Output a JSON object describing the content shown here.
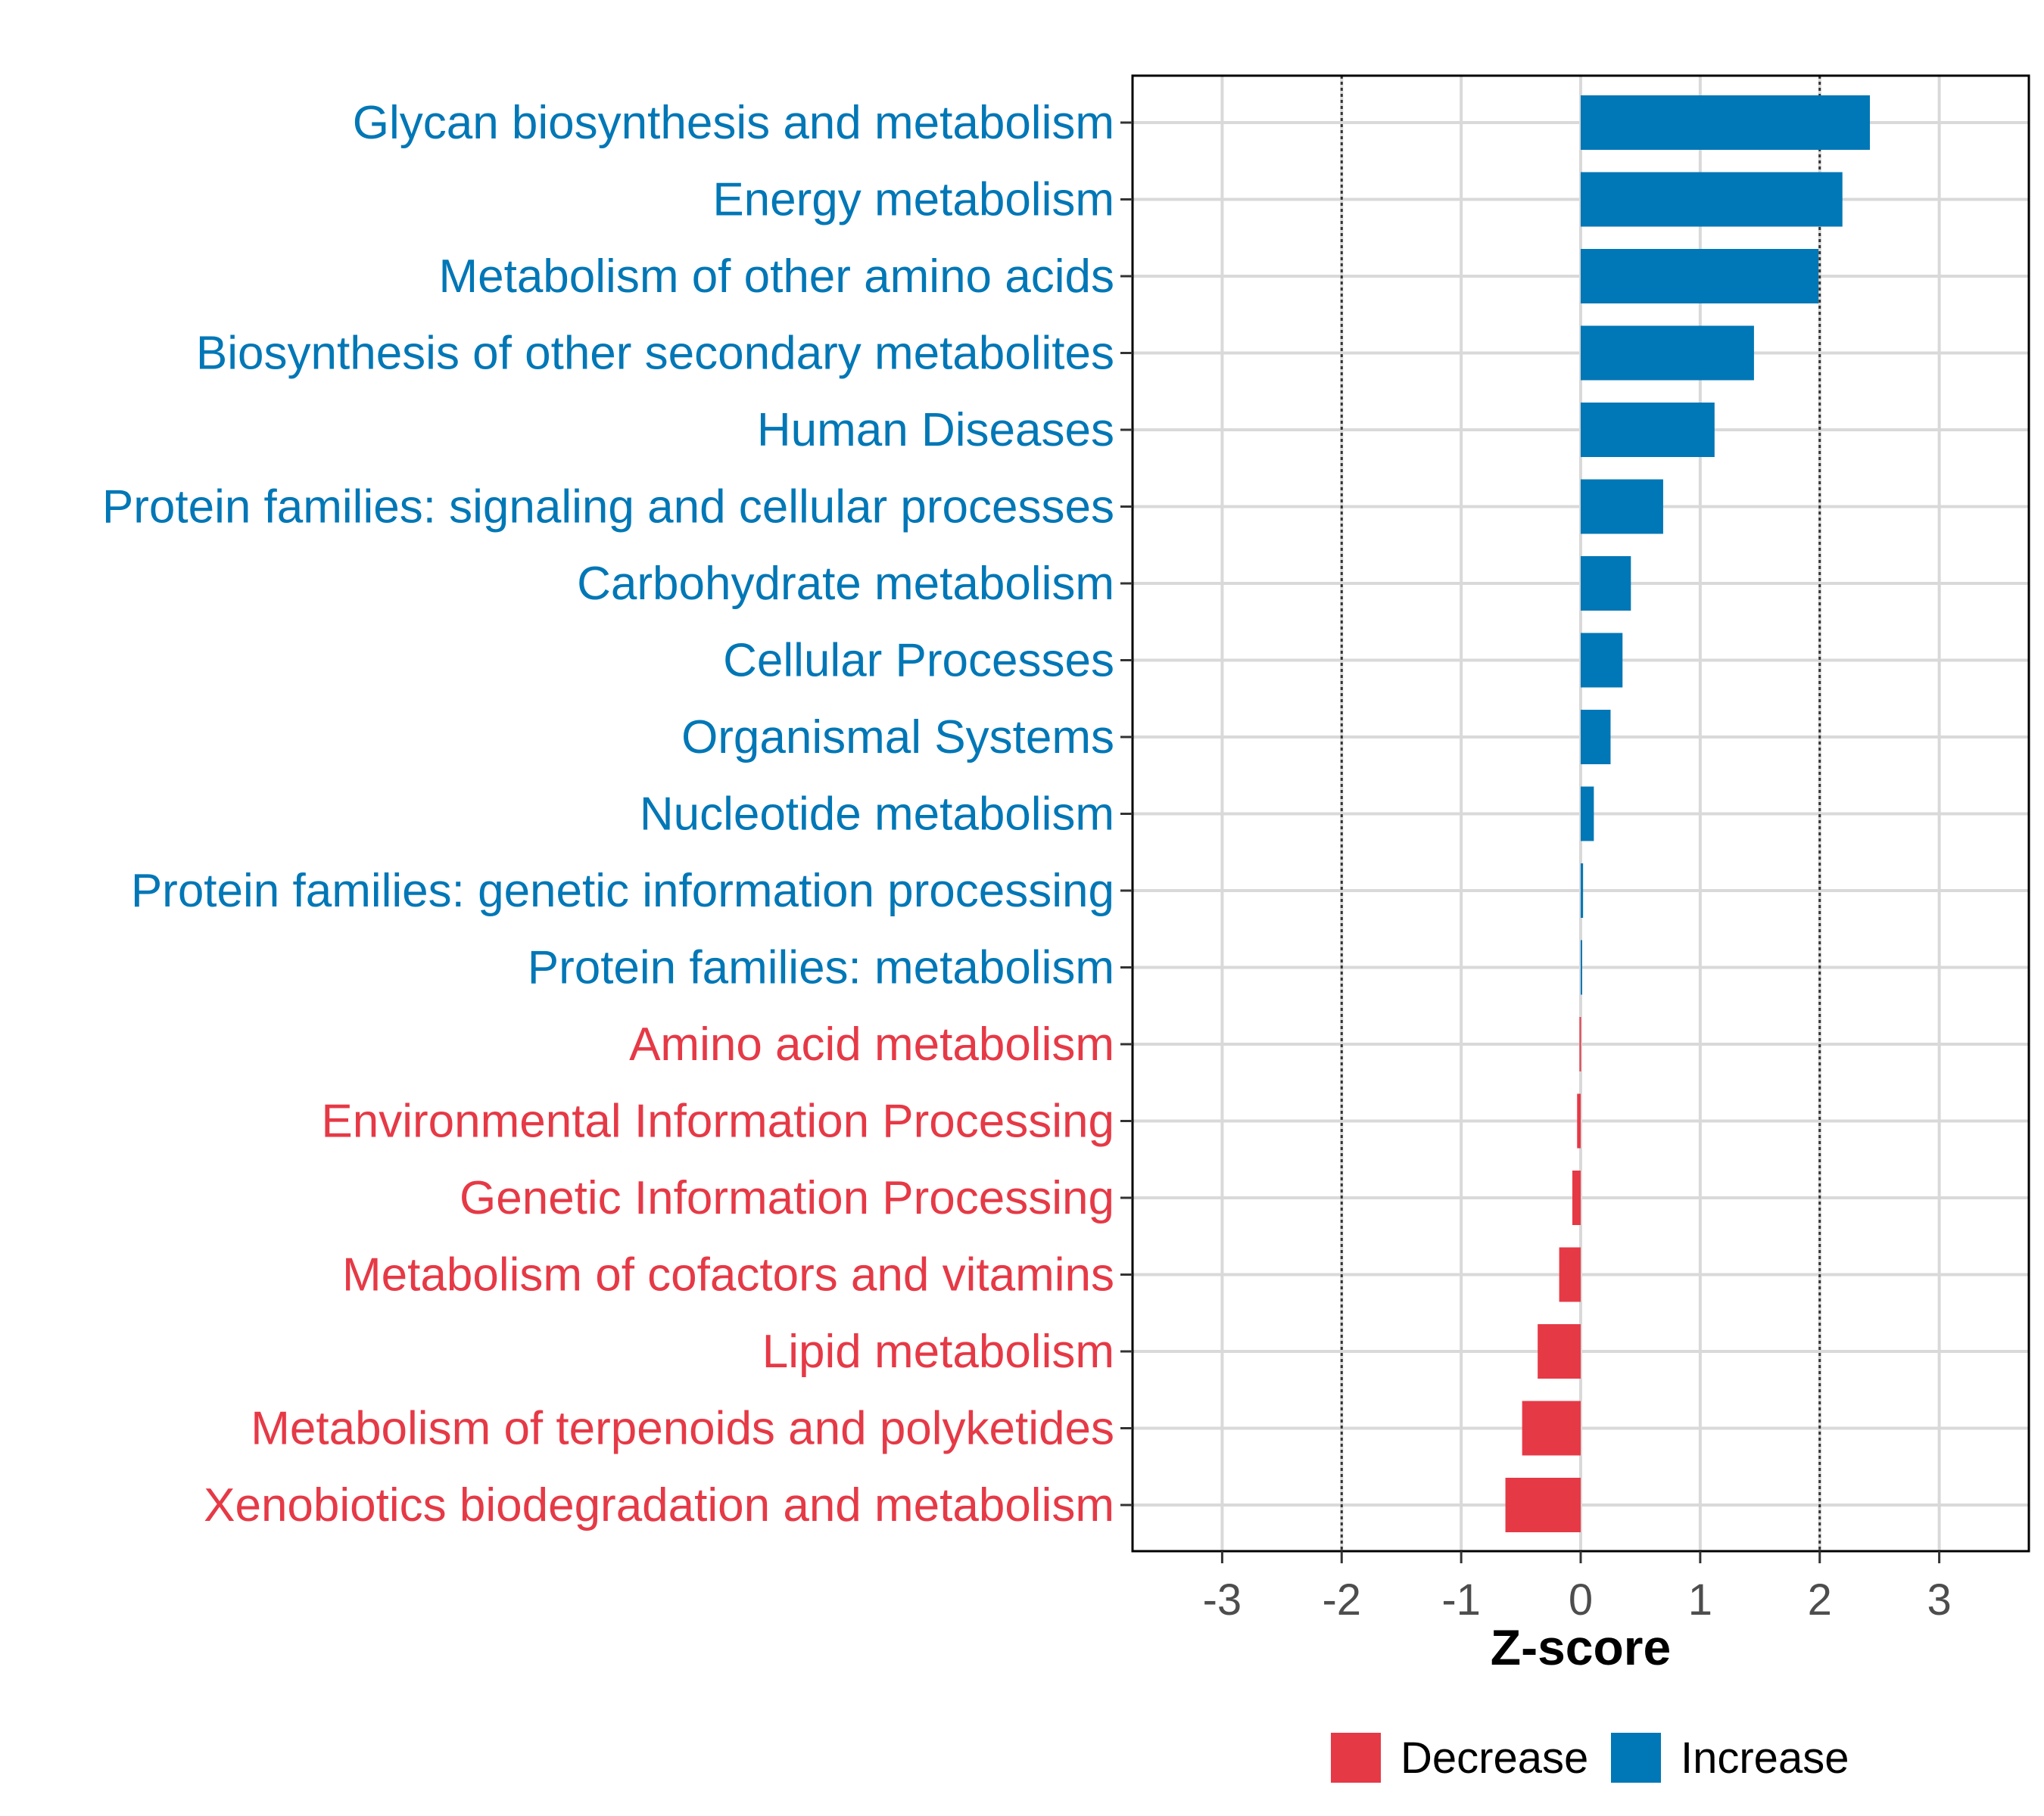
{
  "chart_data": {
    "type": "bar",
    "orientation": "horizontal",
    "title": "",
    "xlabel": "Z-score",
    "ylabel": "",
    "xlim": [
      -3.75,
      3.75
    ],
    "xticks": [
      -3,
      -2,
      -1,
      0,
      1,
      2,
      3
    ],
    "xtick_labels": [
      "-3",
      "-2",
      "-1",
      "0",
      "1",
      "2",
      "3"
    ],
    "reference_lines": [
      -2,
      2
    ],
    "grid": true,
    "colors": {
      "Decrease": "#E63946",
      "Increase": "#0077B6"
    },
    "categories": [
      "Glycan biosynthesis and metabolism",
      "Energy metabolism",
      "Metabolism of other amino acids",
      "Biosynthesis of other secondary metabolites",
      "Human Diseases",
      "Protein families: signaling and cellular processes",
      "Carbohydrate metabolism",
      "Cellular Processes",
      "Organismal Systems",
      "Nucleotide metabolism",
      "Protein families: genetic information processing",
      "Protein families: metabolism",
      "Amino acid metabolism",
      "Environmental Information Processing",
      "Genetic Information Processing",
      "Metabolism of cofactors and vitamins",
      "Lipid metabolism",
      "Metabolism of terpenoids and polyketides",
      "Xenobiotics biodegradation and metabolism"
    ],
    "values": [
      2.42,
      2.19,
      1.99,
      1.45,
      1.12,
      0.69,
      0.42,
      0.35,
      0.25,
      0.11,
      0.02,
      0.01,
      -0.01,
      -0.03,
      -0.07,
      -0.18,
      -0.36,
      -0.49,
      -0.63
    ],
    "groups": [
      "Increase",
      "Increase",
      "Increase",
      "Increase",
      "Increase",
      "Increase",
      "Increase",
      "Increase",
      "Increase",
      "Increase",
      "Increase",
      "Increase",
      "Decrease",
      "Decrease",
      "Decrease",
      "Decrease",
      "Decrease",
      "Decrease",
      "Decrease"
    ],
    "legend": {
      "position": "bottom",
      "entries": [
        "Decrease",
        "Increase"
      ]
    }
  }
}
